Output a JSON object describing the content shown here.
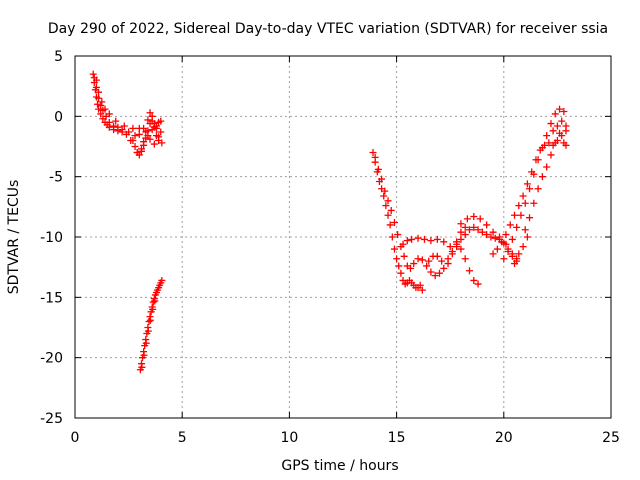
{
  "chart_data": {
    "type": "scatter",
    "title": "Day 290 of 2022, Sidereal Day-to-day VTEC variation (SDTVAR) for receiver ssia",
    "xlabel": "GPS time / hours",
    "ylabel": "SDTVAR / TECUs",
    "xlim": [
      0,
      25
    ],
    "ylim": [
      -25,
      5
    ],
    "xticks": [
      0,
      5,
      10,
      15,
      20,
      25
    ],
    "yticks": [
      -25,
      -20,
      -15,
      -10,
      -5,
      0,
      5
    ],
    "grid": true,
    "marker": "+",
    "color": "#ff0000",
    "series": [
      {
        "points": [
          [
            0.85,
            3.5
          ],
          [
            0.9,
            2.8
          ],
          [
            0.95,
            2.2
          ],
          [
            1.0,
            1.6
          ],
          [
            1.05,
            1.0
          ],
          [
            1.1,
            0.6
          ],
          [
            1.2,
            0.2
          ],
          [
            1.3,
            -0.2
          ],
          [
            1.4,
            -0.5
          ],
          [
            1.5,
            -0.7
          ],
          [
            1.6,
            -0.9
          ],
          [
            1.8,
            -1.1
          ],
          [
            2.0,
            -1.2
          ],
          [
            2.2,
            -1.3
          ],
          [
            2.4,
            -1.5
          ],
          [
            2.6,
            -2.0
          ],
          [
            2.8,
            -2.5
          ],
          [
            2.9,
            -3.0
          ],
          [
            3.0,
            -3.2
          ],
          [
            3.1,
            -2.9
          ],
          [
            3.2,
            -2.4
          ],
          [
            3.3,
            -1.8
          ],
          [
            3.4,
            -1.2
          ],
          [
            3.5,
            -0.6
          ],
          [
            3.6,
            -0.4
          ],
          [
            3.7,
            -0.6
          ],
          [
            3.8,
            -0.8
          ],
          [
            3.9,
            -0.5
          ],
          [
            4.0,
            -0.4
          ],
          [
            0.9,
            3.2
          ],
          [
            1.0,
            2.4
          ],
          [
            1.1,
            1.5
          ],
          [
            1.2,
            0.9
          ],
          [
            1.3,
            0.5
          ],
          [
            1.45,
            0.0
          ],
          [
            1.6,
            -0.5
          ],
          [
            1.8,
            -0.8
          ],
          [
            2.0,
            -0.9
          ],
          [
            2.2,
            -1.1
          ],
          [
            2.5,
            -1.3
          ],
          [
            2.8,
            -1.6
          ],
          [
            3.0,
            -1.5
          ],
          [
            3.2,
            -1.0
          ],
          [
            3.4,
            -0.3
          ],
          [
            3.5,
            0.3
          ],
          [
            3.6,
            0.0
          ],
          [
            3.7,
            -0.9
          ],
          [
            3.8,
            -1.6
          ],
          [
            3.9,
            -2.0
          ],
          [
            4.05,
            -2.2
          ],
          [
            1.0,
            3.0
          ],
          [
            1.1,
            2.0
          ],
          [
            1.25,
            1.2
          ],
          [
            1.4,
            0.6
          ],
          [
            1.6,
            0.2
          ],
          [
            1.9,
            -0.4
          ],
          [
            2.3,
            -0.8
          ],
          [
            2.7,
            -1.0
          ],
          [
            3.0,
            -1.0
          ],
          [
            3.3,
            -1.3
          ],
          [
            3.5,
            -1.9
          ],
          [
            3.7,
            -2.3
          ],
          [
            3.9,
            -1.7
          ],
          [
            4.0,
            -1.3
          ],
          [
            3.2,
            -2.1
          ],
          [
            3.4,
            -1.6
          ],
          [
            3.6,
            -1.1
          ],
          [
            3.8,
            -1.0
          ],
          [
            2.9,
            -3.0
          ],
          [
            3.1,
            -2.7
          ],
          [
            2.7,
            -2.0
          ]
        ]
      },
      {
        "points": [
          [
            3.05,
            -21.0
          ],
          [
            3.1,
            -20.5
          ],
          [
            3.15,
            -20.0
          ],
          [
            3.2,
            -19.5
          ],
          [
            3.25,
            -19.0
          ],
          [
            3.3,
            -18.5
          ],
          [
            3.35,
            -18.0
          ],
          [
            3.4,
            -17.5
          ],
          [
            3.45,
            -17.0
          ],
          [
            3.5,
            -16.6
          ],
          [
            3.55,
            -16.2
          ],
          [
            3.6,
            -15.8
          ],
          [
            3.65,
            -15.4
          ],
          [
            3.7,
            -15.1
          ],
          [
            3.75,
            -14.8
          ],
          [
            3.8,
            -14.6
          ],
          [
            3.85,
            -14.4
          ],
          [
            3.9,
            -14.2
          ],
          [
            3.95,
            -14.0
          ],
          [
            4.0,
            -13.8
          ],
          [
            4.05,
            -13.6
          ],
          [
            3.12,
            -20.8
          ],
          [
            3.22,
            -19.8
          ],
          [
            3.32,
            -18.8
          ],
          [
            3.42,
            -17.8
          ],
          [
            3.52,
            -16.9
          ],
          [
            3.62,
            -16.0
          ],
          [
            3.72,
            -15.3
          ]
        ]
      },
      {
        "points": [
          [
            13.9,
            -3.0
          ],
          [
            14.0,
            -3.8
          ],
          [
            14.1,
            -4.6
          ],
          [
            14.2,
            -5.4
          ],
          [
            14.3,
            -6.0
          ],
          [
            14.4,
            -6.6
          ],
          [
            14.5,
            -7.4
          ],
          [
            14.6,
            -8.2
          ],
          [
            14.7,
            -9.0
          ],
          [
            14.8,
            -10.0
          ],
          [
            14.9,
            -11.0
          ],
          [
            15.0,
            -11.8
          ],
          [
            15.1,
            -12.4
          ],
          [
            15.2,
            -13.0
          ],
          [
            15.3,
            -13.6
          ],
          [
            15.4,
            -13.9
          ],
          [
            15.5,
            -13.8
          ],
          [
            15.6,
            -13.6
          ],
          [
            15.7,
            -13.8
          ],
          [
            15.8,
            -14.0
          ],
          [
            15.9,
            -14.2
          ],
          [
            16.0,
            -14.2
          ],
          [
            16.1,
            -14.0
          ],
          [
            16.2,
            -14.4
          ],
          [
            14.0,
            -3.4
          ],
          [
            14.15,
            -4.4
          ],
          [
            14.3,
            -5.2
          ],
          [
            14.45,
            -6.2
          ],
          [
            14.6,
            -7.0
          ],
          [
            14.75,
            -7.8
          ],
          [
            14.9,
            -8.8
          ],
          [
            15.05,
            -9.8
          ],
          [
            15.2,
            -10.8
          ],
          [
            15.35,
            -11.6
          ],
          [
            15.5,
            -12.4
          ],
          [
            15.65,
            -12.6
          ],
          [
            15.8,
            -12.2
          ],
          [
            16.0,
            -11.8
          ],
          [
            16.2,
            -11.9
          ],
          [
            16.4,
            -12.4
          ],
          [
            16.6,
            -12.9
          ],
          [
            16.8,
            -13.2
          ],
          [
            17.0,
            -13.0
          ],
          [
            17.2,
            -12.6
          ],
          [
            17.4,
            -12.2
          ],
          [
            17.6,
            -11.4
          ],
          [
            17.8,
            -10.8
          ],
          [
            18.0,
            -11.0
          ],
          [
            18.2,
            -11.8
          ],
          [
            18.4,
            -12.8
          ],
          [
            18.6,
            -13.6
          ],
          [
            18.8,
            -13.9
          ],
          [
            15.3,
            -10.6
          ],
          [
            15.5,
            -10.3
          ],
          [
            15.7,
            -10.2
          ],
          [
            16.0,
            -10.1
          ],
          [
            16.3,
            -10.2
          ],
          [
            16.6,
            -10.3
          ],
          [
            16.9,
            -10.2
          ],
          [
            17.2,
            -10.4
          ],
          [
            17.5,
            -10.8
          ],
          [
            17.8,
            -10.6
          ],
          [
            18.0,
            -10.2
          ],
          [
            18.2,
            -9.8
          ],
          [
            18.4,
            -9.4
          ],
          [
            18.6,
            -9.2
          ],
          [
            18.8,
            -9.4
          ],
          [
            19.0,
            -9.6
          ],
          [
            19.2,
            -9.8
          ],
          [
            19.4,
            -10.0
          ],
          [
            19.6,
            -10.1
          ],
          [
            19.8,
            -10.2
          ],
          [
            20.0,
            -10.5
          ],
          [
            20.2,
            -11.0
          ],
          [
            20.4,
            -11.6
          ],
          [
            20.6,
            -12.0
          ],
          [
            18.0,
            -8.9
          ],
          [
            18.3,
            -8.5
          ],
          [
            18.6,
            -8.3
          ],
          [
            18.9,
            -8.5
          ],
          [
            19.2,
            -9.0
          ],
          [
            19.5,
            -9.6
          ],
          [
            19.8,
            -10.0
          ],
          [
            20.1,
            -10.6
          ],
          [
            20.4,
            -11.4
          ],
          [
            20.6,
            -11.8
          ],
          [
            17.4,
            -11.8
          ],
          [
            17.6,
            -11.2
          ],
          [
            17.8,
            -10.4
          ],
          [
            18.0,
            -9.6
          ],
          [
            18.2,
            -9.2
          ],
          [
            16.5,
            -12.0
          ],
          [
            16.7,
            -11.6
          ],
          [
            16.9,
            -11.6
          ],
          [
            17.1,
            -12.0
          ],
          [
            19.5,
            -11.4
          ],
          [
            19.7,
            -11.0
          ],
          [
            19.9,
            -10.4
          ],
          [
            20.1,
            -9.8
          ],
          [
            20.3,
            -9.0
          ],
          [
            20.5,
            -8.2
          ],
          [
            20.7,
            -7.4
          ],
          [
            20.9,
            -6.6
          ],
          [
            21.1,
            -5.6
          ],
          [
            21.3,
            -4.6
          ],
          [
            21.5,
            -3.6
          ],
          [
            21.7,
            -2.8
          ],
          [
            21.9,
            -2.4
          ],
          [
            22.1,
            -2.2
          ],
          [
            22.3,
            -2.4
          ],
          [
            22.5,
            -2.0
          ],
          [
            22.7,
            -1.6
          ],
          [
            22.9,
            -1.2
          ],
          [
            20.0,
            -11.8
          ],
          [
            20.2,
            -11.2
          ],
          [
            20.4,
            -10.2
          ],
          [
            20.6,
            -9.2
          ],
          [
            20.8,
            -8.2
          ],
          [
            21.0,
            -7.2
          ],
          [
            21.2,
            -6.0
          ],
          [
            21.4,
            -4.8
          ],
          [
            21.6,
            -3.6
          ],
          [
            21.8,
            -2.6
          ],
          [
            22.0,
            -1.6
          ],
          [
            22.2,
            -0.6
          ],
          [
            22.4,
            0.2
          ],
          [
            22.6,
            0.6
          ],
          [
            22.8,
            0.4
          ],
          [
            21.0,
            -9.4
          ],
          [
            21.2,
            -8.4
          ],
          [
            21.4,
            -7.2
          ],
          [
            21.6,
            -6.0
          ],
          [
            21.8,
            -5.0
          ],
          [
            22.0,
            -4.2
          ],
          [
            22.2,
            -3.2
          ],
          [
            22.4,
            -2.2
          ],
          [
            22.6,
            -1.4
          ],
          [
            22.8,
            -2.2
          ],
          [
            22.9,
            -2.4
          ],
          [
            22.3,
            -1.2
          ],
          [
            22.5,
            -0.8
          ],
          [
            22.7,
            -0.4
          ],
          [
            22.9,
            -0.8
          ],
          [
            20.5,
            -12.2
          ],
          [
            20.7,
            -11.4
          ],
          [
            20.9,
            -10.8
          ],
          [
            21.1,
            -10.0
          ]
        ]
      }
    ]
  }
}
